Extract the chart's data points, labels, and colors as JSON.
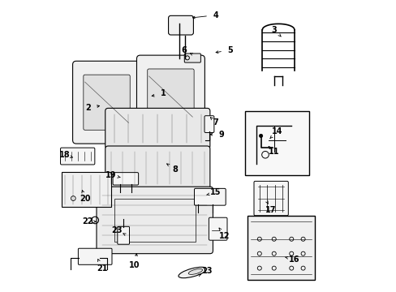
{
  "bg_color": "#ffffff",
  "line_color": "#000000",
  "fig_width": 4.89,
  "fig_height": 3.6,
  "dpi": 100,
  "arrow_data": [
    [
      "1",
      [
        0.38,
        0.68
      ],
      [
        0.33,
        0.67
      ]
    ],
    [
      "2",
      [
        0.12,
        0.63
      ],
      [
        0.17,
        0.64
      ]
    ],
    [
      "3",
      [
        0.76,
        0.9
      ],
      [
        0.79,
        0.87
      ]
    ],
    [
      "4",
      [
        0.56,
        0.95
      ],
      [
        0.47,
        0.94
      ]
    ],
    [
      "5",
      [
        0.61,
        0.83
      ],
      [
        0.55,
        0.82
      ]
    ],
    [
      "6",
      [
        0.45,
        0.83
      ],
      [
        0.47,
        0.82
      ]
    ],
    [
      "7",
      [
        0.56,
        0.58
      ],
      [
        0.54,
        0.6
      ]
    ],
    [
      "8",
      [
        0.42,
        0.42
      ],
      [
        0.39,
        0.44
      ]
    ],
    [
      "9",
      [
        0.58,
        0.54
      ],
      [
        0.53,
        0.54
      ]
    ],
    [
      "10",
      [
        0.28,
        0.09
      ],
      [
        0.29,
        0.14
      ]
    ],
    [
      "11",
      [
        0.76,
        0.48
      ],
      [
        0.74,
        0.5
      ]
    ],
    [
      "12",
      [
        0.59,
        0.19
      ],
      [
        0.57,
        0.22
      ]
    ],
    [
      "13",
      [
        0.53,
        0.07
      ],
      [
        0.51,
        0.06
      ]
    ],
    [
      "14",
      [
        0.77,
        0.55
      ],
      [
        0.74,
        0.52
      ]
    ],
    [
      "15",
      [
        0.56,
        0.34
      ],
      [
        0.52,
        0.33
      ]
    ],
    [
      "16",
      [
        0.83,
        0.11
      ],
      [
        0.79,
        0.12
      ]
    ],
    [
      "17",
      [
        0.75,
        0.28
      ],
      [
        0.74,
        0.3
      ]
    ],
    [
      "18",
      [
        0.04,
        0.47
      ],
      [
        0.07,
        0.46
      ]
    ],
    [
      "19",
      [
        0.2,
        0.4
      ],
      [
        0.24,
        0.39
      ]
    ],
    [
      "20",
      [
        0.11,
        0.32
      ],
      [
        0.1,
        0.35
      ]
    ],
    [
      "21",
      [
        0.17,
        0.08
      ],
      [
        0.15,
        0.12
      ]
    ],
    [
      "22",
      [
        0.12,
        0.24
      ],
      [
        0.15,
        0.24
      ]
    ],
    [
      "23",
      [
        0.22,
        0.21
      ],
      [
        0.24,
        0.2
      ]
    ]
  ]
}
